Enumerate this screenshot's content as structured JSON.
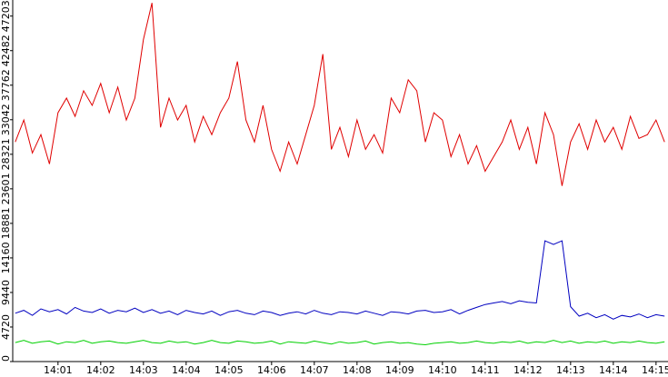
{
  "chart_data": {
    "type": "line",
    "x": [
      0,
      0.2,
      0.4,
      0.6,
      0.8,
      1,
      1.2,
      1.4,
      1.6,
      1.8,
      2,
      2.2,
      2.4,
      2.6,
      2.8,
      3,
      3.2,
      3.4,
      3.6,
      3.8,
      4,
      4.2,
      4.4,
      4.6,
      4.8,
      5,
      5.2,
      5.4,
      5.6,
      5.8,
      6,
      6.2,
      6.4,
      6.6,
      6.8,
      7,
      7.2,
      7.4,
      7.6,
      7.8,
      8,
      8.2,
      8.4,
      8.6,
      8.8,
      9,
      9.2,
      9.4,
      9.6,
      9.8,
      10,
      10.2,
      10.4,
      10.6,
      10.8,
      11,
      11.2,
      11.4,
      11.6,
      11.8,
      12,
      12.2,
      12.4,
      12.6,
      12.8,
      13,
      13.2,
      13.4,
      13.6,
      13.8,
      14,
      14.2,
      14.4,
      14.6,
      14.8,
      15,
      15.2
    ],
    "series": [
      {
        "color": "#e00000",
        "values": [
          30000,
          33000,
          28500,
          31000,
          27000,
          34000,
          36000,
          33500,
          37000,
          35000,
          38000,
          34000,
          37500,
          33000,
          36000,
          44000,
          49000,
          32000,
          36000,
          33000,
          35000,
          30000,
          33500,
          31000,
          34000,
          36000,
          41000,
          33000,
          30000,
          35000,
          29000,
          26000,
          30000,
          27000,
          31000,
          35000,
          42000,
          29000,
          32000,
          28000,
          33000,
          29000,
          31000,
          28500,
          36000,
          34000,
          38500,
          37000,
          30000,
          34000,
          33000,
          28000,
          31000,
          27000,
          29500,
          26000,
          28000,
          30000,
          33000,
          29000,
          32000,
          27000,
          34000,
          31000,
          24000,
          30000,
          32500,
          29000,
          33000,
          30000,
          32000,
          29000,
          33500,
          30500,
          31000,
          33000,
          30000
        ]
      },
      {
        "color": "#0000c0",
        "values": [
          6600,
          7000,
          6300,
          7200,
          6800,
          7100,
          6500,
          7400,
          6900,
          6700,
          7200,
          6600,
          7000,
          6800,
          7300,
          6700,
          7100,
          6600,
          6900,
          6400,
          7000,
          6700,
          6500,
          6900,
          6300,
          6800,
          7000,
          6600,
          6400,
          6900,
          6700,
          6300,
          6600,
          6800,
          6500,
          7000,
          6600,
          6400,
          6800,
          6700,
          6500,
          6900,
          6600,
          6300,
          6800,
          6700,
          6500,
          6900,
          7000,
          6700,
          6800,
          7100,
          6500,
          7000,
          7400,
          7800,
          8000,
          8200,
          7900,
          8300,
          8100,
          8000,
          16500,
          16000,
          16500,
          7500,
          6200,
          6600,
          6000,
          6400,
          5800,
          6300,
          6100,
          6500,
          6000,
          6400,
          6200
        ]
      },
      {
        "color": "#00d000",
        "values": [
          2600,
          2900,
          2500,
          2700,
          2800,
          2400,
          2700,
          2600,
          2900,
          2500,
          2700,
          2800,
          2600,
          2500,
          2700,
          2900,
          2600,
          2500,
          2800,
          2600,
          2700,
          2400,
          2600,
          2900,
          2600,
          2500,
          2800,
          2700,
          2500,
          2600,
          2800,
          2400,
          2700,
          2600,
          2500,
          2800,
          2600,
          2400,
          2700,
          2500,
          2600,
          2800,
          2400,
          2600,
          2700,
          2500,
          2600,
          2400,
          2300,
          2500,
          2600,
          2700,
          2500,
          2600,
          2800,
          2600,
          2500,
          2700,
          2600,
          2800,
          2500,
          2700,
          2600,
          2900,
          2600,
          2800,
          2500,
          2700,
          2600,
          2800,
          2500,
          2700,
          2600,
          2800,
          2600,
          2500,
          2700
        ]
      }
    ],
    "xlim": [
      -0.06,
      15.28
    ],
    "xticks": [
      {
        "value": 1,
        "label": "14:01"
      },
      {
        "value": 2,
        "label": "14:02"
      },
      {
        "value": 3,
        "label": "14:03"
      },
      {
        "value": 4,
        "label": "14:04"
      },
      {
        "value": 5,
        "label": "14:05"
      },
      {
        "value": 6,
        "label": "14:06"
      },
      {
        "value": 7,
        "label": "14:07"
      },
      {
        "value": 8,
        "label": "14:08"
      },
      {
        "value": 9,
        "label": "14:09"
      },
      {
        "value": 10,
        "label": "14:10"
      },
      {
        "value": 11,
        "label": "14:11"
      },
      {
        "value": 12,
        "label": "14:12"
      },
      {
        "value": 13,
        "label": "14:13"
      },
      {
        "value": 14,
        "label": "14:14"
      },
      {
        "value": 15,
        "label": "14:15"
      }
    ],
    "ylim": [
      0,
      49400
    ],
    "yticks": [
      0,
      4720,
      9440,
      14160,
      18881,
      23601,
      28321,
      33042,
      37762,
      42482,
      47203
    ]
  }
}
